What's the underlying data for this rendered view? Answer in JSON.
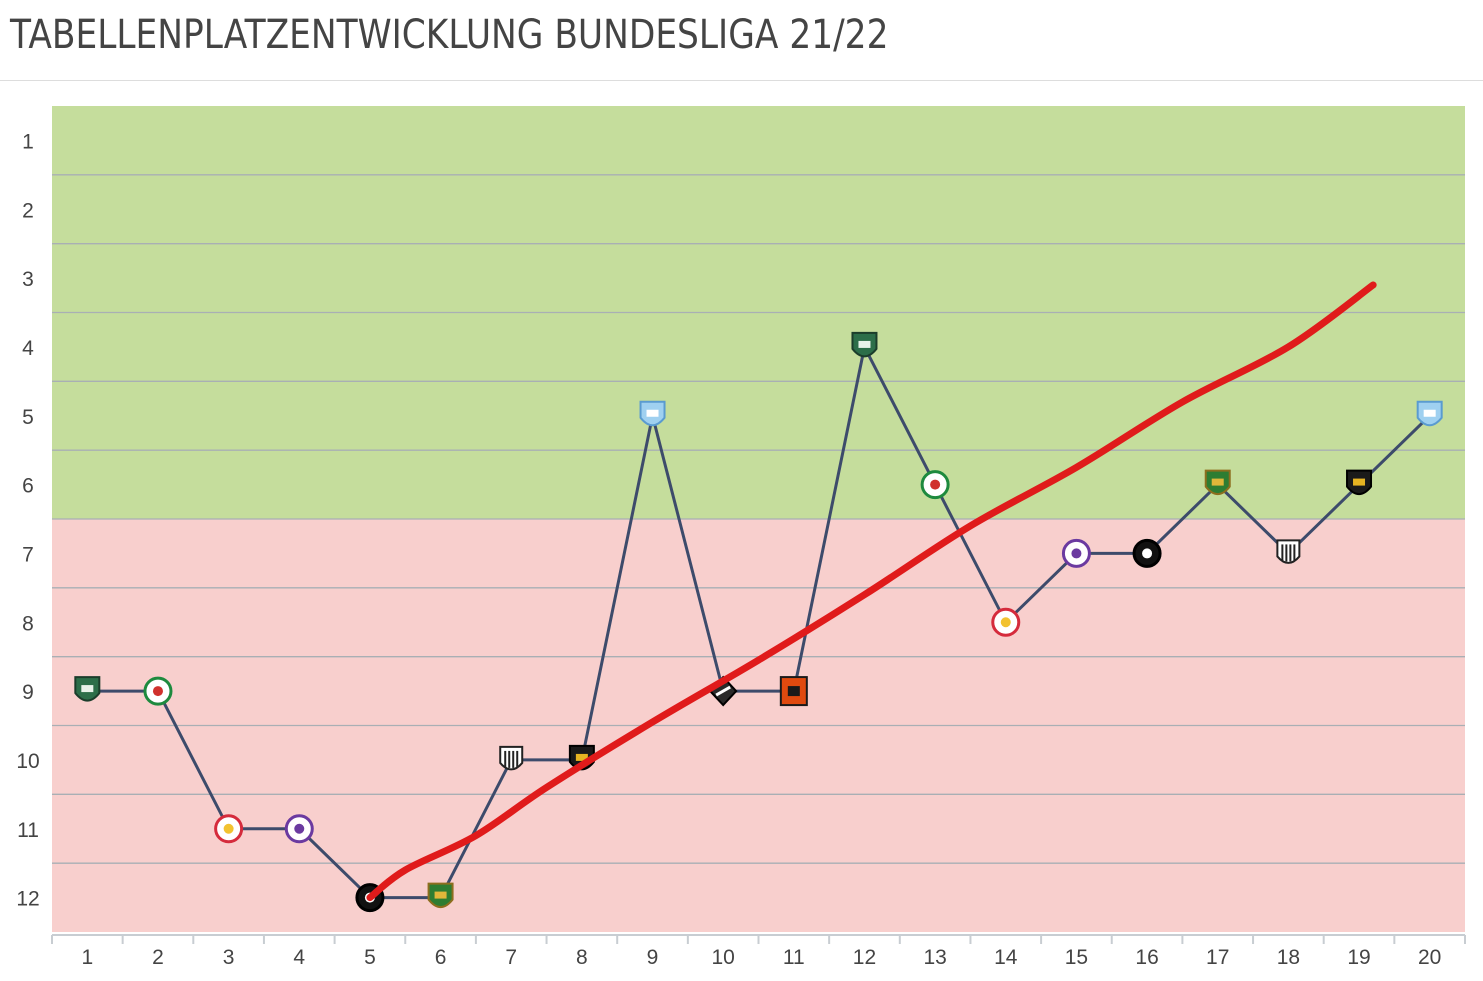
{
  "page": {
    "title": "TABELLENPLATZENTWICKLUNG BUNDESLIGA 21/22"
  },
  "chart_data": {
    "type": "line",
    "title": "TABELLENPLATZENTWICKLUNG BUNDESLIGA 21/22",
    "x": [
      1,
      2,
      3,
      4,
      5,
      6,
      7,
      8,
      9,
      10,
      11,
      12,
      13,
      14,
      15,
      16,
      17,
      18,
      19,
      20
    ],
    "xlim": [
      0.5,
      20.5
    ],
    "ylim": [
      12.5,
      0.5
    ],
    "y_inverted": true,
    "yticks": [
      1,
      2,
      3,
      4,
      5,
      6,
      7,
      8,
      9,
      10,
      11,
      12
    ],
    "bands": [
      {
        "from": 0.5,
        "to": 6.5,
        "color": "#c5dd9c"
      },
      {
        "from": 6.5,
        "to": 12.5,
        "color": "#f8cfcd"
      }
    ],
    "grid": true,
    "series": [
      {
        "values": [
          9,
          9,
          11,
          11,
          12,
          12,
          10,
          10,
          5,
          9,
          9,
          4,
          6,
          8,
          7,
          7,
          6,
          7,
          6,
          5
        ],
        "color": "#3d4b6b",
        "markers": [
          "green-badge-icon",
          "red-green-badge-icon",
          "bull-badge-icon",
          "violet-badge-icon",
          "black-oval-badge-icon",
          "green-gold-badge-icon",
          "striped-badge-icon",
          "black-gold-badge-icon",
          "sky-blue-badge-icon",
          "black-white-badge-icon",
          "orange-black-badge-icon",
          "green-badge-icon",
          "red-green-badge-icon",
          "bull-badge-icon",
          "violet-badge-icon",
          "black-oval-badge-icon",
          "green-gold-badge-icon",
          "striped-badge-icon",
          "black-gold-badge-icon",
          "sky-blue-badge-icon"
        ]
      }
    ],
    "trend": {
      "x": [
        5,
        5.5,
        6.5,
        7.5,
        9,
        10.5,
        12,
        13.5,
        15,
        16.5,
        18,
        19.2
      ],
      "values": [
        12,
        11.6,
        11.1,
        10.4,
        9.45,
        8.55,
        7.6,
        6.6,
        5.75,
        4.8,
        4.0,
        3.1
      ],
      "color": "#e01b1b"
    }
  }
}
